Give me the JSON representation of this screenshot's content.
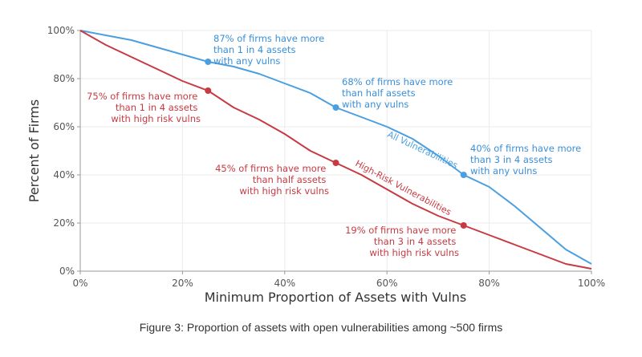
{
  "chart_data": {
    "type": "line",
    "xlabel": "Minimum Proportion of Assets with Vulns",
    "ylabel": "Percent of Firms",
    "xlim": [
      0,
      100
    ],
    "ylim": [
      0,
      100
    ],
    "x_ticks": [
      "0%",
      "20%",
      "40%",
      "60%",
      "80%",
      "100%"
    ],
    "y_ticks": [
      "0%",
      "20%",
      "40%",
      "60%",
      "80%",
      "100%"
    ],
    "grid": true,
    "series": [
      {
        "name": "All Vulnerabilities",
        "color": "#4a9fe0",
        "points": [
          [
            0,
            100
          ],
          [
            5,
            98
          ],
          [
            10,
            96
          ],
          [
            15,
            93
          ],
          [
            20,
            90
          ],
          [
            25,
            87
          ],
          [
            30,
            85
          ],
          [
            35,
            82
          ],
          [
            40,
            78
          ],
          [
            45,
            74
          ],
          [
            50,
            68
          ],
          [
            55,
            64
          ],
          [
            60,
            60
          ],
          [
            65,
            55
          ],
          [
            70,
            48
          ],
          [
            75,
            40
          ],
          [
            80,
            35
          ],
          [
            85,
            27
          ],
          [
            90,
            18
          ],
          [
            95,
            9
          ],
          [
            100,
            3
          ]
        ]
      },
      {
        "name": "High-Risk Vulnerabilities",
        "color": "#c83a42",
        "points": [
          [
            0,
            100
          ],
          [
            5,
            94
          ],
          [
            10,
            89
          ],
          [
            15,
            84
          ],
          [
            20,
            79
          ],
          [
            25,
            75
          ],
          [
            30,
            68
          ],
          [
            35,
            63
          ],
          [
            40,
            57
          ],
          [
            45,
            50
          ],
          [
            50,
            45
          ],
          [
            55,
            40
          ],
          [
            60,
            34
          ],
          [
            65,
            28
          ],
          [
            70,
            23
          ],
          [
            75,
            19
          ],
          [
            80,
            15
          ],
          [
            85,
            11
          ],
          [
            90,
            7
          ],
          [
            95,
            3
          ],
          [
            100,
            1
          ]
        ]
      }
    ],
    "highlights": [
      {
        "series": 0,
        "x": 25,
        "y": 87
      },
      {
        "series": 0,
        "x": 50,
        "y": 68
      },
      {
        "series": 0,
        "x": 75,
        "y": 40
      },
      {
        "series": 1,
        "x": 25,
        "y": 75
      },
      {
        "series": 1,
        "x": 50,
        "y": 45
      },
      {
        "series": 1,
        "x": 75,
        "y": 19
      }
    ],
    "annotations": {
      "all_25": [
        "87% of firms have more",
        "than 1 in 4 assets",
        "with any vulns"
      ],
      "all_50": [
        "68% of firms have more",
        "than half assets",
        "with any vulns"
      ],
      "all_75": [
        "40% of firms have more",
        "than 3 in 4 assets",
        "with any vulns"
      ],
      "high_25": [
        "75% of firms have more",
        "than 1 in 4 assets",
        "with high risk vulns"
      ],
      "high_50": [
        "45% of firms have more",
        "than half assets",
        "with high risk vulns"
      ],
      "high_75": [
        "19% of firms have more",
        "than 3 in 4 assets",
        "with high risk vulns"
      ]
    }
  },
  "caption": "Figure 3: Proportion of assets with open vulnerabilities among ~500 firms"
}
